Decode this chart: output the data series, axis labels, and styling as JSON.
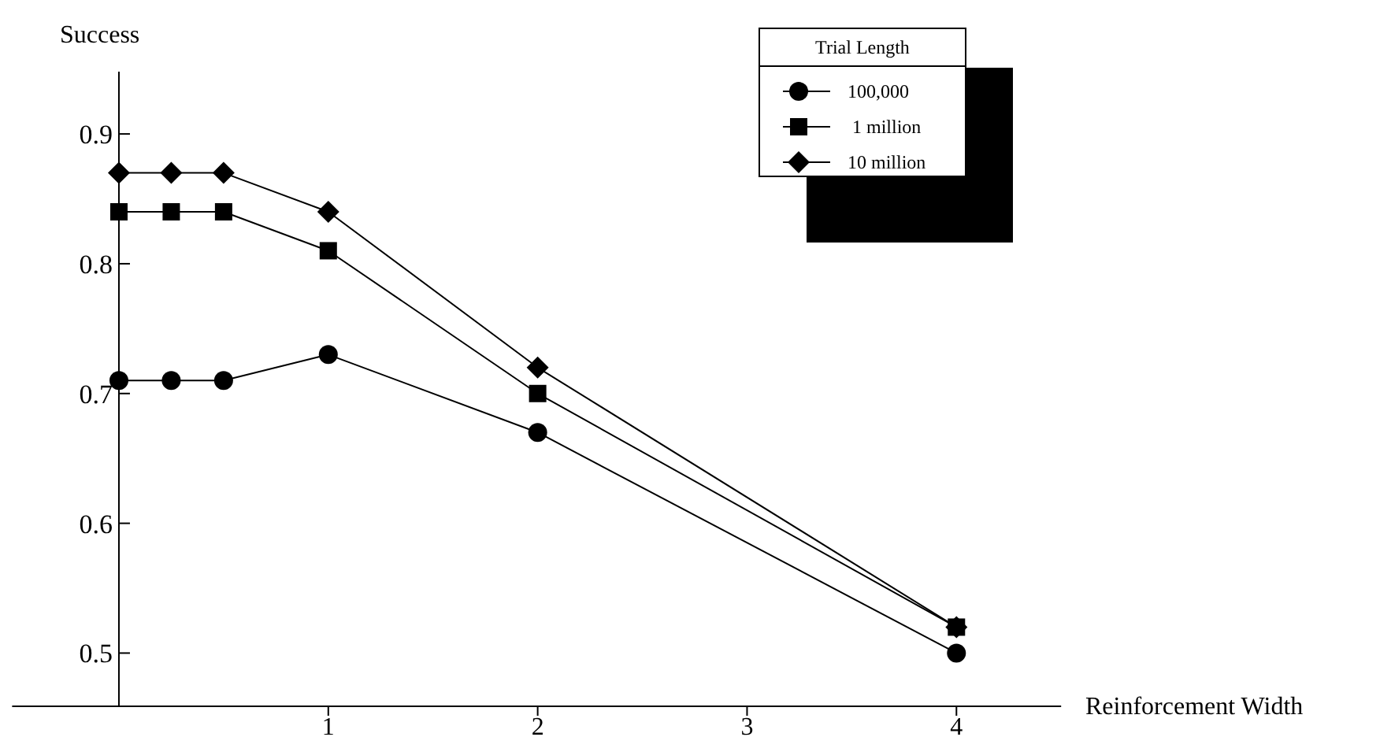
{
  "chart_data": {
    "type": "line",
    "xlabel": "Reinforcement Width",
    "ylabel": "Success",
    "legend_title": "Trial Length",
    "legend": "top right",
    "x": [
      0,
      0.25,
      0.5,
      1,
      2,
      4
    ],
    "xlim": [
      -0.51,
      4.5
    ],
    "xticks": [
      1,
      2,
      3,
      4
    ],
    "ylim": [
      0.459,
      0.948
    ],
    "yticks": [
      0.5,
      0.6,
      0.7,
      0.8,
      0.9
    ],
    "series": [
      {
        "name": "100,000",
        "color": "#000000",
        "marker": "circle",
        "values": [
          0.71,
          0.71,
          0.71,
          0.73,
          0.67,
          0.5
        ]
      },
      {
        "name": " 1 million",
        "color": "#000000",
        "marker": "square",
        "values": [
          0.84,
          0.84,
          0.84,
          0.81,
          0.7,
          0.52
        ]
      },
      {
        "name": "10 million",
        "color": "#000000",
        "marker": "diamond",
        "values": [
          0.87,
          0.87,
          0.87,
          0.84,
          0.72,
          0.52
        ]
      }
    ]
  }
}
